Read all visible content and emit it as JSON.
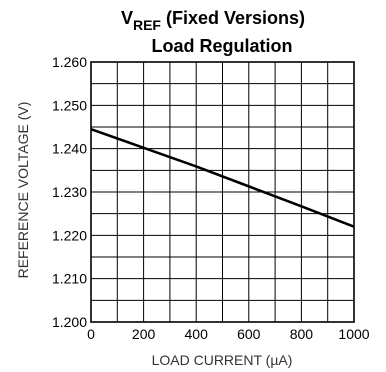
{
  "chart_data": {
    "type": "line",
    "title": {
      "main": "V",
      "subscript": "REF",
      "suffix": " (Fixed Versions)",
      "line2": "Load Regulation"
    },
    "xlabel": "LOAD CURRENT (µA)",
    "ylabel": "REFERENCE VOLTAGE (V)",
    "xlim": [
      0,
      1000
    ],
    "ylim": [
      1.2,
      1.26
    ],
    "x_ticks": [
      0,
      200,
      400,
      600,
      800,
      1000
    ],
    "x_tick_labels": [
      "0",
      "200",
      "400",
      "600",
      "800",
      "1000"
    ],
    "y_ticks": [
      1.2,
      1.21,
      1.22,
      1.23,
      1.24,
      1.25,
      1.26
    ],
    "y_tick_labels": [
      "1.200",
      "1.210",
      "1.220",
      "1.230",
      "1.240",
      "1.250",
      "1.260"
    ],
    "grid": true,
    "x_minor_step": 100,
    "y_minor_step": 0.005,
    "series": [
      {
        "x": [
          0,
          200,
          400,
          600,
          800,
          1000
        ],
        "y": [
          1.2445,
          1.2402,
          1.2359,
          1.2313,
          1.2267,
          1.222
        ]
      }
    ],
    "colors": {
      "line": "#000000",
      "grid": "#000000",
      "label": "#333333"
    }
  }
}
